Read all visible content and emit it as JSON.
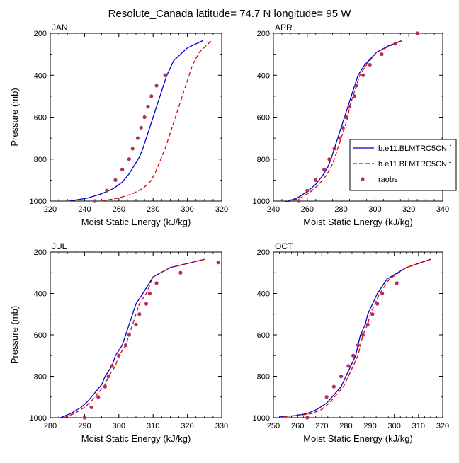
{
  "figure": {
    "title": "Resolute_Canada  latitude= 74.7 N longitude= 95 W"
  },
  "legend": {
    "entries": [
      {
        "label": "b.e11.BLMTRC5CN.f",
        "style": "solid",
        "color": "#0000cc"
      },
      {
        "label": "b.e11.BLMTRC5CN.f",
        "style": "dashed",
        "color": "#dd0000"
      },
      {
        "label": "raobs",
        "style": "marker",
        "color": "#b03060"
      }
    ],
    "placement": "right of APR panel"
  },
  "chart_data": [
    {
      "type": "line",
      "panel": "JAN",
      "title": "JAN",
      "xlabel": "Moist Static Energy (kJ/kg)",
      "ylabel": "Pressure (mb)",
      "xlim": [
        220,
        320
      ],
      "ylim": [
        1000,
        200
      ],
      "y_reversed": true,
      "xticks": [
        220,
        240,
        260,
        280,
        300,
        320
      ],
      "yticks": [
        200,
        400,
        600,
        800,
        1000
      ],
      "series": [
        {
          "name": "b.e11.BLMTRC5CN.f",
          "style": "solid",
          "color": "#0000cc",
          "points": [
            [
              231,
              1000
            ],
            [
              242,
              985
            ],
            [
              250,
              965
            ],
            [
              257,
              940
            ],
            [
              262,
              910
            ],
            [
              266,
              870
            ],
            [
              269,
              830
            ],
            [
              272,
              790
            ],
            [
              274,
              750
            ],
            [
              276,
              700
            ],
            [
              278,
              650
            ],
            [
              280,
              600
            ],
            [
              282,
              550
            ],
            [
              284,
              500
            ],
            [
              286,
              450
            ],
            [
              288,
              400
            ],
            [
              292,
              330
            ],
            [
              300,
              270
            ],
            [
              309,
              235
            ]
          ]
        },
        {
          "name": "b.e11.BLMTRC5CN.f",
          "style": "dashed",
          "color": "#dd0000",
          "points": [
            [
              250,
              1000
            ],
            [
              260,
              985
            ],
            [
              268,
              965
            ],
            [
              274,
              940
            ],
            [
              278,
              910
            ],
            [
              281,
              870
            ],
            [
              283,
              830
            ],
            [
              285,
              790
            ],
            [
              287,
              750
            ],
            [
              289,
              700
            ],
            [
              291,
              650
            ],
            [
              293,
              600
            ],
            [
              295,
              550
            ],
            [
              297,
              500
            ],
            [
              299,
              450
            ],
            [
              301,
              400
            ],
            [
              303,
              350
            ],
            [
              307,
              290
            ],
            [
              314,
              235
            ]
          ]
        },
        {
          "name": "raobs",
          "style": "marker",
          "color": "#b03060",
          "points": [
            [
              246,
              1000
            ],
            [
              253,
              950
            ],
            [
              258,
              900
            ],
            [
              262,
              850
            ],
            [
              266,
              800
            ],
            [
              268,
              750
            ],
            [
              271,
              700
            ],
            [
              273,
              650
            ],
            [
              275,
              600
            ],
            [
              277,
              550
            ],
            [
              279,
              500
            ],
            [
              282,
              450
            ],
            [
              287,
              400
            ]
          ]
        }
      ]
    },
    {
      "type": "line",
      "panel": "APR",
      "title": "APR",
      "xlabel": "Moist Static Energy (kJ/kg)",
      "ylabel": "",
      "xlim": [
        240,
        340
      ],
      "ylim": [
        1000,
        200
      ],
      "y_reversed": true,
      "xticks": [
        240,
        260,
        280,
        300,
        320,
        340
      ],
      "yticks": [
        200,
        400,
        600,
        800,
        1000
      ],
      "series": [
        {
          "name": "b.e11.BLMTRC5CN.f",
          "style": "solid",
          "color": "#0000cc",
          "points": [
            [
              247,
              1005
            ],
            [
              254,
              985
            ],
            [
              260,
              955
            ],
            [
              265,
              920
            ],
            [
              269,
              880
            ],
            [
              272,
              840
            ],
            [
              274,
              800
            ],
            [
              276,
              750
            ],
            [
              278,
              700
            ],
            [
              280,
              650
            ],
            [
              282,
              600
            ],
            [
              284,
              550
            ],
            [
              286,
              500
            ],
            [
              288,
              450
            ],
            [
              290,
              400
            ],
            [
              294,
              350
            ],
            [
              301,
              290
            ],
            [
              308,
              260
            ],
            [
              316,
              235
            ]
          ]
        },
        {
          "name": "b.e11.BLMTRC5CN.f",
          "style": "dashed",
          "color": "#dd0000",
          "points": [
            [
              248,
              1005
            ],
            [
              256,
              985
            ],
            [
              262,
              955
            ],
            [
              267,
              920
            ],
            [
              271,
              880
            ],
            [
              274,
              840
            ],
            [
              276,
              800
            ],
            [
              278,
              750
            ],
            [
              280,
              700
            ],
            [
              282,
              650
            ],
            [
              284,
              600
            ],
            [
              285,
              550
            ],
            [
              287,
              500
            ],
            [
              289,
              450
            ],
            [
              291,
              400
            ],
            [
              295,
              350
            ],
            [
              301,
              290
            ],
            [
              309,
              260
            ],
            [
              316,
              235
            ]
          ]
        },
        {
          "name": "raobs",
          "style": "marker",
          "color": "#b03060",
          "points": [
            [
              255,
              1000
            ],
            [
              260,
              950
            ],
            [
              265,
              900
            ],
            [
              270,
              850
            ],
            [
              273,
              800
            ],
            [
              276,
              750
            ],
            [
              279,
              700
            ],
            [
              281,
              650
            ],
            [
              283,
              600
            ],
            [
              285,
              550
            ],
            [
              288,
              500
            ],
            [
              289,
              450
            ],
            [
              293,
              400
            ],
            [
              297,
              350
            ],
            [
              304,
              300
            ],
            [
              312,
              250
            ],
            [
              325,
              200
            ]
          ]
        }
      ]
    },
    {
      "type": "line",
      "panel": "JUL",
      "title": "JUL",
      "xlabel": "Moist Static Energy (kJ/kg)",
      "ylabel": "Pressure (mb)",
      "xlim": [
        280,
        330
      ],
      "ylim": [
        1000,
        200
      ],
      "y_reversed": true,
      "xticks": [
        280,
        290,
        300,
        310,
        320,
        330
      ],
      "yticks": [
        200,
        400,
        600,
        800,
        1000
      ],
      "series": [
        {
          "name": "b.e11.BLMTRC5CN.f",
          "style": "solid",
          "color": "#0000cc",
          "points": [
            [
              283,
              1000
            ],
            [
              286,
              980
            ],
            [
              289,
              950
            ],
            [
              291,
              920
            ],
            [
              293,
              880
            ],
            [
              295,
              840
            ],
            [
              296,
              800
            ],
            [
              298,
              750
            ],
            [
              299,
              700
            ],
            [
              301,
              650
            ],
            [
              302,
              600
            ],
            [
              303,
              550
            ],
            [
              304,
              500
            ],
            [
              305,
              450
            ],
            [
              307,
              400
            ],
            [
              310,
              320
            ],
            [
              315,
              275
            ],
            [
              320,
              255
            ],
            [
              325,
              235
            ]
          ]
        },
        {
          "name": "b.e11.BLMTRC5CN.f",
          "style": "dashed",
          "color": "#dd0000",
          "points": [
            [
              284,
              1000
            ],
            [
              287,
              980
            ],
            [
              290,
              950
            ],
            [
              292,
              920
            ],
            [
              294,
              880
            ],
            [
              296,
              840
            ],
            [
              297,
              800
            ],
            [
              299,
              750
            ],
            [
              300,
              700
            ],
            [
              302,
              650
            ],
            [
              303,
              600
            ],
            [
              304,
              550
            ],
            [
              305,
              500
            ],
            [
              306,
              450
            ],
            [
              308,
              400
            ],
            [
              310,
              320
            ],
            [
              315,
              275
            ],
            [
              320,
              255
            ],
            [
              325,
              235
            ]
          ]
        },
        {
          "name": "raobs",
          "style": "marker",
          "color": "#b03060",
          "points": [
            [
              290,
              1000
            ],
            [
              292,
              950
            ],
            [
              294,
              900
            ],
            [
              296,
              850
            ],
            [
              297,
              800
            ],
            [
              298,
              750
            ],
            [
              300,
              700
            ],
            [
              302,
              650
            ],
            [
              303,
              600
            ],
            [
              305,
              550
            ],
            [
              306,
              500
            ],
            [
              308,
              450
            ],
            [
              309,
              400
            ],
            [
              311,
              350
            ],
            [
              318,
              300
            ],
            [
              329,
              250
            ]
          ]
        }
      ]
    },
    {
      "type": "line",
      "panel": "OCT",
      "title": "OCT",
      "xlabel": "Moist Static Energy (kJ/kg)",
      "ylabel": "",
      "xlim": [
        250,
        320
      ],
      "ylim": [
        1000,
        200
      ],
      "y_reversed": true,
      "xticks": [
        250,
        260,
        270,
        280,
        290,
        300,
        310,
        320
      ],
      "yticks": [
        200,
        400,
        600,
        800,
        1000
      ],
      "series": [
        {
          "name": "b.e11.BLMTRC5CN.f",
          "style": "solid",
          "color": "#0000cc",
          "points": [
            [
              253,
              995
            ],
            [
              259,
              990
            ],
            [
              264,
              980
            ],
            [
              268,
              960
            ],
            [
              272,
              930
            ],
            [
              275,
              890
            ],
            [
              278,
              850
            ],
            [
              280,
              800
            ],
            [
              282,
              750
            ],
            [
              284,
              700
            ],
            [
              285,
              650
            ],
            [
              286,
              600
            ],
            [
              288,
              550
            ],
            [
              289,
              500
            ],
            [
              291,
              450
            ],
            [
              293,
              400
            ],
            [
              297,
              330
            ],
            [
              305,
              275
            ],
            [
              315,
              235
            ]
          ]
        },
        {
          "name": "b.e11.BLMTRC5CN.f",
          "style": "dashed",
          "color": "#dd0000",
          "points": [
            [
              254,
              995
            ],
            [
              260,
              990
            ],
            [
              266,
              980
            ],
            [
              270,
              960
            ],
            [
              273,
              930
            ],
            [
              276,
              890
            ],
            [
              279,
              850
            ],
            [
              281,
              800
            ],
            [
              283,
              750
            ],
            [
              285,
              700
            ],
            [
              286,
              650
            ],
            [
              287,
              600
            ],
            [
              289,
              550
            ],
            [
              290,
              500
            ],
            [
              292,
              450
            ],
            [
              294,
              400
            ],
            [
              298,
              330
            ],
            [
              305,
              275
            ],
            [
              315,
              235
            ]
          ]
        },
        {
          "name": "raobs",
          "style": "marker",
          "color": "#b03060",
          "points": [
            [
              264,
              1000
            ],
            [
              272,
              900
            ],
            [
              275,
              850
            ],
            [
              278,
              800
            ],
            [
              281,
              750
            ],
            [
              283,
              700
            ],
            [
              285,
              650
            ],
            [
              287,
              600
            ],
            [
              289,
              550
            ],
            [
              291,
              500
            ],
            [
              293,
              450
            ],
            [
              295,
              400
            ],
            [
              301,
              350
            ]
          ]
        }
      ]
    }
  ]
}
